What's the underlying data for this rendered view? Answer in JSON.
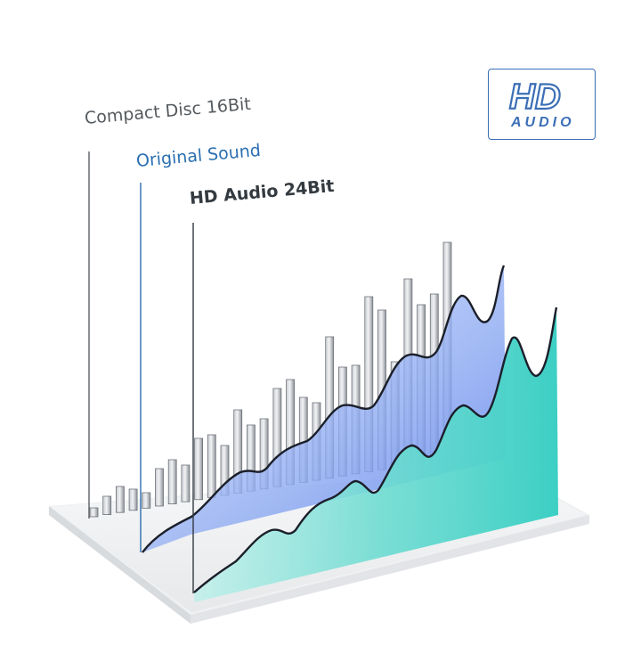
{
  "labels": {
    "compact_disc": "Compact Disc 16Bit",
    "original_sound": "Original Sound",
    "hd_audio": "HD Audio 24Bit"
  },
  "badge": {
    "line1": "HD",
    "line2": "AUDIO"
  },
  "colors": {
    "cd_bars": "#9fa4ab",
    "original_wave": "#7f9ef0",
    "hd_wave": "#4ed1c8",
    "label_cd": "#555a5e",
    "label_original": "#2a6fb0",
    "label_hd": "#333a40",
    "badge_blue": "#3b6fb6"
  },
  "icons": {
    "badge": "hd-audio-logo"
  }
}
